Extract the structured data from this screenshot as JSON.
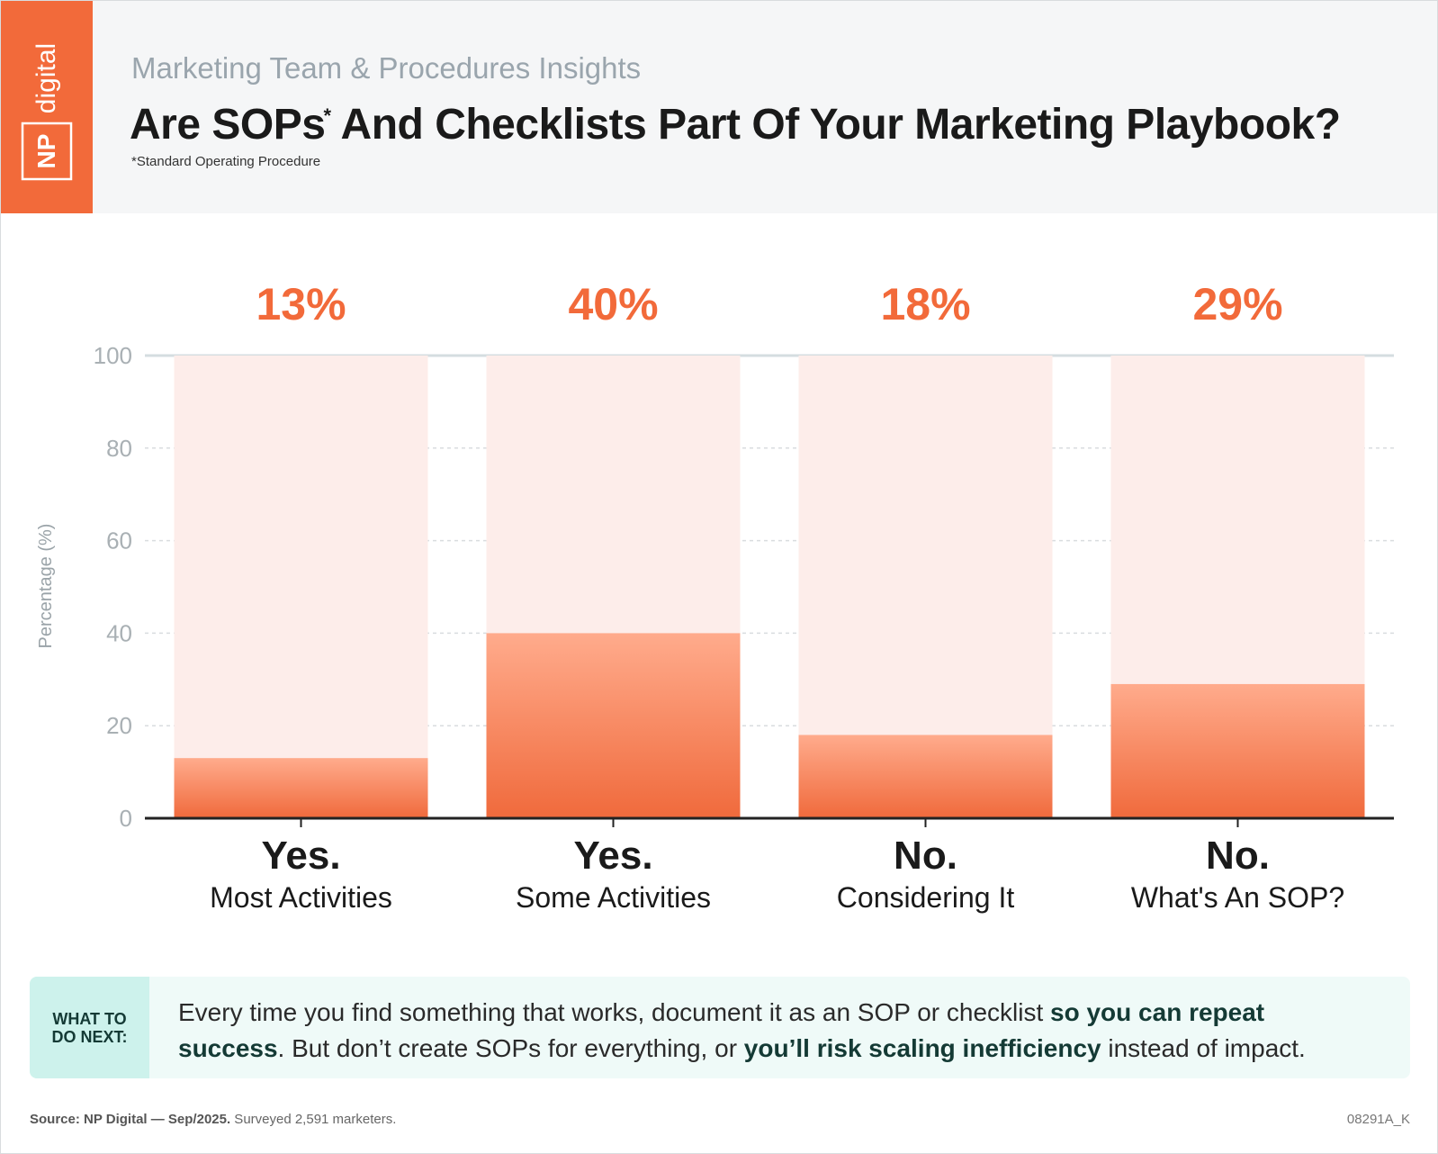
{
  "header": {
    "subtitle": "Marketing Team & Procedures Insights",
    "title": "Are SOPs",
    "title_mark": "*",
    "title_rest": " And Checklists Part Of Your Marketing Playbook?",
    "footnote": "*Standard Operating Procedure",
    "logo": {
      "line1": "NP",
      "line2": "digital"
    }
  },
  "chart_data": {
    "type": "bar",
    "ylabel": "Percentage (%)",
    "ylim": [
      0,
      100
    ],
    "yticks": [
      "0",
      "20",
      "40",
      "60",
      "80",
      "100"
    ],
    "grid": true,
    "categories": [
      {
        "line1": "Yes.",
        "line2": "Most Activities"
      },
      {
        "line1": "Yes.",
        "line2": "Some Activities"
      },
      {
        "line1": "No.",
        "line2": "Considering It"
      },
      {
        "line1": "No.",
        "line2": "What's An SOP?"
      }
    ],
    "values": [
      13,
      40,
      18,
      29
    ],
    "value_labels": [
      "13%",
      "40%",
      "18%",
      "29%"
    ]
  },
  "callout": {
    "tag_line1": "WHAT TO",
    "tag_line2": "DO NEXT:",
    "text_1": "Every time you find something that works, document it as an SOP or checklist ",
    "bold_1": "so you can repeat success",
    "text_2": ". But don’t create SOPs for everything, or ",
    "bold_2": "you’ll risk scaling inefficiency",
    "text_3": " instead of impact."
  },
  "footer": {
    "source_bold": "Source: NP Digital — Sep/2025.",
    "source_rest": " Surveyed 2,591 marketers.",
    "code": "08291A_K"
  },
  "colors": {
    "accent": "#f26a3a",
    "bar_track": "#fdedea",
    "bar_top": "#ffab8c",
    "bar_bottom": "#f06a3c",
    "value_label": "#f26a3a",
    "callout_bg": "#effaf8",
    "callout_tag_bg": "#cdf2ec",
    "callout_bold": "#143a35"
  }
}
